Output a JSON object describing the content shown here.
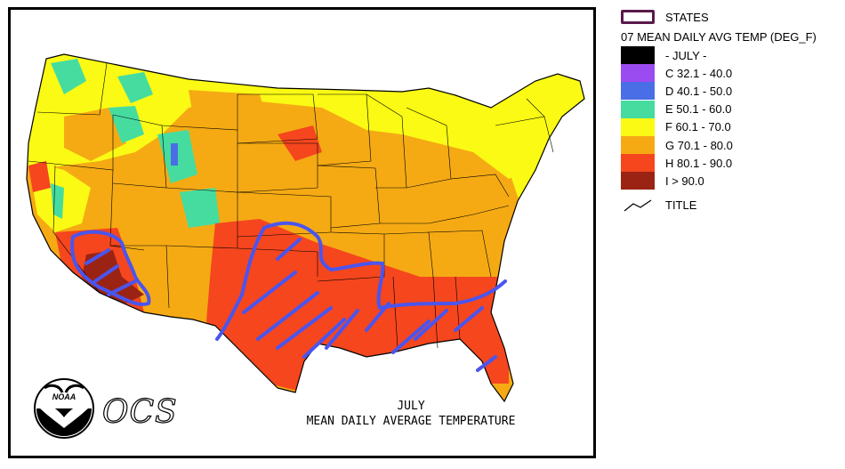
{
  "legend": {
    "states_label": "STATES",
    "title": "07 MEAN DAILY AVG TEMP (DEG_F)",
    "title_line_label": "TITLE",
    "items": [
      {
        "label": "- JULY -",
        "color": "#000000"
      },
      {
        "label": "C 32.1 - 40.0",
        "color": "#9b4cf0"
      },
      {
        "label": "D 40.1 - 50.0",
        "color": "#4a6ee6"
      },
      {
        "label": "E 50.1 - 60.0",
        "color": "#46dca0"
      },
      {
        "label": "F 60.1 - 70.0",
        "color": "#fafa14"
      },
      {
        "label": "G 70.1 - 80.0",
        "color": "#f5aa14"
      },
      {
        "label": "H 80.1 - 90.0",
        "color": "#f5461e"
      },
      {
        "label": "I > 90.0",
        "color": "#9b2314"
      }
    ]
  },
  "map": {
    "caption_month": "JULY",
    "caption_title": "MEAN DAILY AVERAGE TEMPERATURE",
    "logo_text": "NOAA",
    "ocs_text": "OCS",
    "annotation_color": "#4a55ee"
  }
}
